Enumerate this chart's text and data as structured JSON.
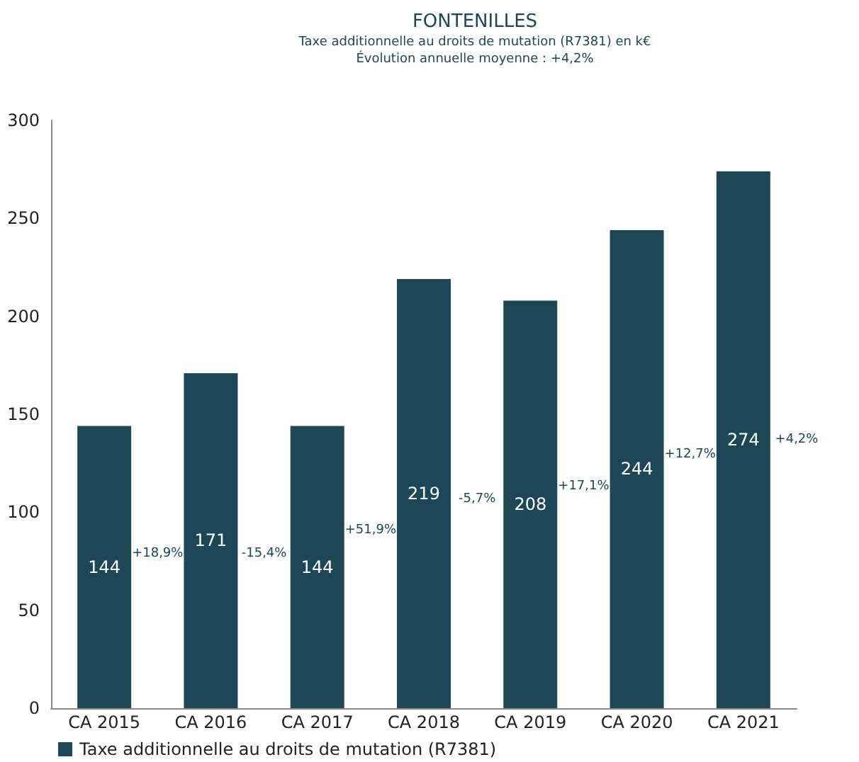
{
  "chart_data": {
    "type": "bar",
    "title": "FONTENILLES",
    "subtitle": "Taxe additionnelle au droits de mutation (R7381) en k€\nÉvolution annuelle moyenne : +4,2%",
    "categories": [
      "CA 2015",
      "CA 2016",
      "CA 2017",
      "CA 2018",
      "CA 2019",
      "CA 2020",
      "CA 2021"
    ],
    "series": [
      {
        "name": "Taxe additionnelle au droits de mutation (R7381)",
        "color": "#1d4756",
        "values": [
          144,
          171,
          144,
          219,
          208,
          244,
          274
        ]
      }
    ],
    "data_labels": true,
    "ylim": [
      0,
      300
    ],
    "yticks": [
      0,
      50,
      100,
      150,
      200,
      250,
      300
    ],
    "grid": false,
    "legend": "bottom left",
    "annotations": [
      "+18,9%",
      "-15,4%",
      "+51,9%",
      "-5,7%",
      "+17,1%",
      "+12,7%",
      "+4,2%"
    ]
  }
}
